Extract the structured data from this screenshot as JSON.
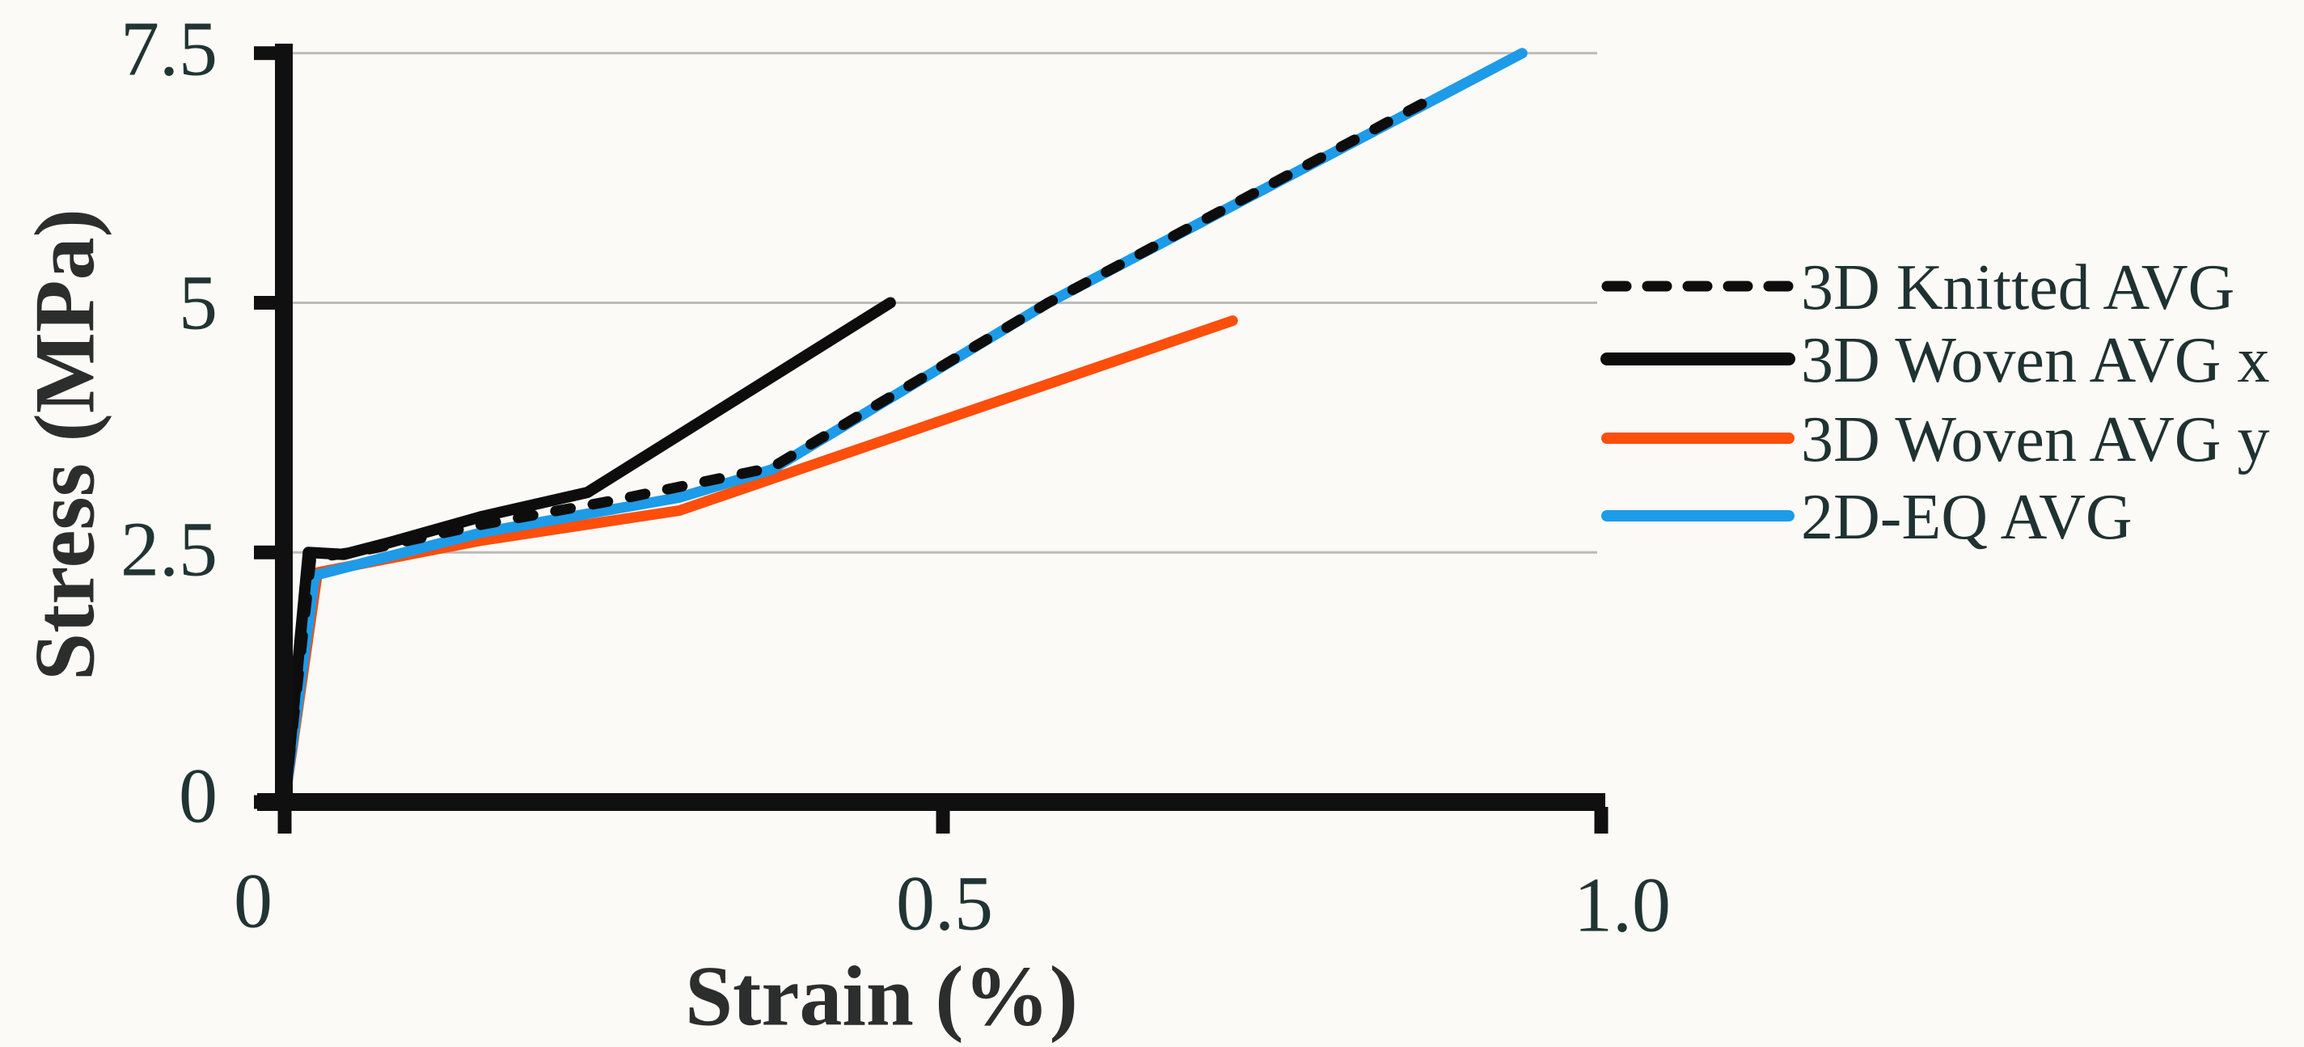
{
  "figure": {
    "background": "#fbfaf7",
    "axis_color": "#101010",
    "grid_color": "#bdbaba",
    "text_color": "#213434"
  },
  "axes": {
    "x": {
      "label": "Strain (%)",
      "ticks": [
        "0",
        "0.5",
        "1.0"
      ],
      "tick_values": [
        0,
        0.5,
        1.0
      ],
      "range": [
        0,
        1.0
      ]
    },
    "y": {
      "label": "Stress (MPa)",
      "ticks": [
        "0",
        "2.5",
        "5",
        "7.5"
      ],
      "tick_values": [
        0,
        2.5,
        5,
        7.5
      ],
      "gridline_values": [
        2.5,
        5,
        7.5
      ],
      "range": [
        0,
        7.5
      ]
    }
  },
  "legend": {
    "items": [
      {
        "label": "3D Knitted AVG",
        "swatch": "dashed",
        "color": "#0d0d0d"
      },
      {
        "label": "3D Woven AVG x",
        "swatch": "solid",
        "color": "#0d0d0d"
      },
      {
        "label": "3D Woven AVG y",
        "swatch": "solid",
        "color": "#fd4e0c"
      },
      {
        "label": "2D-EQ AVG",
        "swatch": "solid",
        "color": "#1d9be8"
      }
    ]
  },
  "chart_data": {
    "type": "line",
    "title": "",
    "xlabel": "Strain (%)",
    "ylabel": "Stress (MPa)",
    "xlim": [
      0,
      1.0
    ],
    "ylim": [
      0,
      7.5
    ],
    "grid": "horizontal gridlines at y = 2.5, 5, 7.5",
    "legend_position": "right",
    "series": [
      {
        "name": "3D Knitted AVG",
        "color": "#0d0d0d",
        "style": "dashed",
        "points": [
          [
            0,
            0
          ],
          [
            0.02,
            2.44
          ],
          [
            0.06,
            2.52
          ],
          [
            0.15,
            2.78
          ],
          [
            0.25,
            3.02
          ],
          [
            0.37,
            3.35
          ],
          [
            0.58,
            5.0
          ],
          [
            0.865,
            7.0
          ]
        ]
      },
      {
        "name": "3D Woven AVG x",
        "color": "#0d0d0d",
        "style": "solid",
        "points": [
          [
            0,
            0
          ],
          [
            0.018,
            2.5
          ],
          [
            0.045,
            2.48
          ],
          [
            0.08,
            2.6
          ],
          [
            0.15,
            2.86
          ],
          [
            0.23,
            3.1
          ],
          [
            0.46,
            5.0
          ]
        ]
      },
      {
        "name": "3D Woven AVG y",
        "color": "#fd4e0c",
        "style": "solid",
        "points": [
          [
            0,
            0
          ],
          [
            0.025,
            2.3
          ],
          [
            0.15,
            2.62
          ],
          [
            0.3,
            2.92
          ],
          [
            0.72,
            4.82
          ]
        ]
      },
      {
        "name": "2D-EQ AVG",
        "color": "#1d9be8",
        "style": "solid",
        "points": [
          [
            0,
            0
          ],
          [
            0.023,
            2.27
          ],
          [
            0.15,
            2.7
          ],
          [
            0.3,
            3.05
          ],
          [
            0.37,
            3.33
          ],
          [
            0.58,
            5.0
          ],
          [
            0.94,
            7.5
          ]
        ]
      }
    ]
  }
}
